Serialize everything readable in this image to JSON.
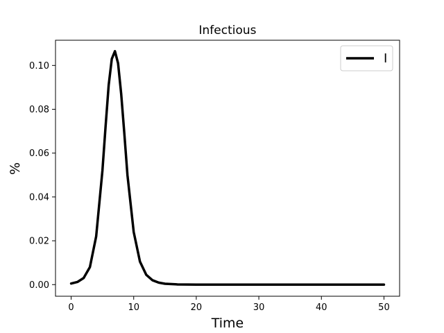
{
  "chart_data": {
    "type": "line",
    "title": "Infectious",
    "xlabel": "Time",
    "ylabel": "%",
    "xlim": [
      -2.5,
      52.5
    ],
    "ylim": [
      -0.0053,
      0.1115
    ],
    "xticks": [
      0,
      10,
      20,
      30,
      40,
      50
    ],
    "yticks": [
      0.0,
      0.02,
      0.04,
      0.06,
      0.08,
      0.1
    ],
    "xtick_labels": [
      "0",
      "10",
      "20",
      "30",
      "40",
      "50"
    ],
    "ytick_labels": [
      "0.00",
      "0.02",
      "0.04",
      "0.06",
      "0.08",
      "0.10"
    ],
    "grid": false,
    "legend_position": "top-right",
    "series": [
      {
        "name": "I",
        "color": "#000000",
        "x": [
          0,
          1,
          2,
          3,
          4,
          5,
          5.5,
          6,
          6.5,
          7,
          7.5,
          8,
          8.5,
          9,
          10,
          11,
          12,
          13,
          14,
          15,
          17,
          20,
          25,
          30,
          35,
          40,
          45,
          50
        ],
        "y": [
          0.0005,
          0.0012,
          0.003,
          0.008,
          0.022,
          0.052,
          0.072,
          0.091,
          0.103,
          0.1065,
          0.101,
          0.087,
          0.069,
          0.05,
          0.024,
          0.0105,
          0.0045,
          0.002,
          0.0009,
          0.0004,
          0.0001,
          0.0,
          0.0,
          0.0,
          0.0,
          0.0,
          0.0,
          0.0
        ]
      }
    ]
  }
}
